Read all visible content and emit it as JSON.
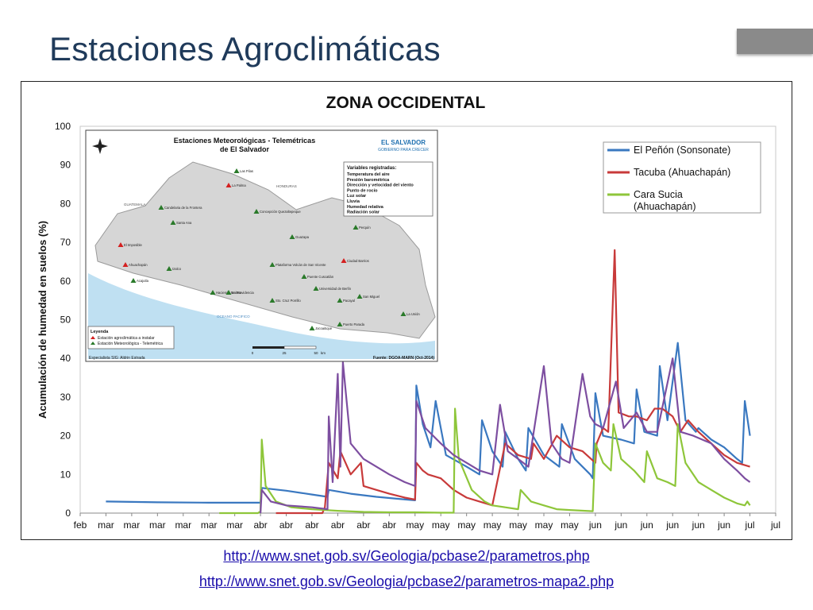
{
  "slide": {
    "title": "Estaciones Agroclimáticas",
    "links": [
      "http://www.snet.gob.sv/Geologia/pcbase2/parametros.php",
      "http://www.snet.gob.sv/Geologia/pcbase2/parametros-mapa2.php"
    ]
  },
  "chart_data": {
    "type": "line",
    "title": "ZONA OCCIDENTAL",
    "ylabel": "Acumulación  de humedad en suelos (%)",
    "xlabel": "",
    "ylim": [
      0,
      100
    ],
    "yticks": [
      0,
      10,
      20,
      30,
      40,
      50,
      60,
      70,
      80,
      90,
      100
    ],
    "grid": false,
    "legend_position": "top-right",
    "categories": [
      "feb",
      "mar",
      "mar",
      "mar",
      "mar",
      "mar",
      "mar",
      "abr",
      "abr",
      "abr",
      "abr",
      "abr",
      "abr",
      "may",
      "may",
      "may",
      "may",
      "may",
      "may",
      "may",
      "jun",
      "jun",
      "jun",
      "jun",
      "jun",
      "jun",
      "jul",
      "jul"
    ],
    "series": [
      {
        "name": "El Peñón (Sonsonate)",
        "color": "#3a78c0",
        "points": [
          [
            1,
            3
          ],
          [
            3,
            2.8
          ],
          [
            5,
            2.7
          ],
          [
            7,
            2.7
          ],
          [
            7.05,
            6.5
          ],
          [
            8,
            5.8
          ],
          [
            9,
            4.8
          ],
          [
            9.6,
            4.2
          ],
          [
            9.65,
            6
          ],
          [
            10.5,
            5
          ],
          [
            11.5,
            4.2
          ],
          [
            12.5,
            3.6
          ],
          [
            13,
            3.3
          ],
          [
            13.05,
            33
          ],
          [
            13.3,
            23
          ],
          [
            13.6,
            17
          ],
          [
            13.8,
            29
          ],
          [
            14.2,
            15
          ],
          [
            15,
            12
          ],
          [
            15.5,
            10
          ],
          [
            15.6,
            24
          ],
          [
            16,
            16
          ],
          [
            16.4,
            12
          ],
          [
            16.5,
            21
          ],
          [
            17,
            14
          ],
          [
            17.3,
            11
          ],
          [
            17.4,
            22
          ],
          [
            18,
            15
          ],
          [
            18.6,
            12
          ],
          [
            18.7,
            23
          ],
          [
            19.2,
            14
          ],
          [
            19.8,
            10
          ],
          [
            19.9,
            9
          ],
          [
            20,
            31
          ],
          [
            20.3,
            20
          ],
          [
            21,
            19
          ],
          [
            21.5,
            18
          ],
          [
            21.6,
            32
          ],
          [
            21.9,
            21
          ],
          [
            22.4,
            20
          ],
          [
            22.5,
            38
          ],
          [
            22.8,
            24
          ],
          [
            23.2,
            44
          ],
          [
            23.5,
            24
          ],
          [
            23.9,
            21
          ],
          [
            24,
            22
          ],
          [
            24.5,
            19
          ],
          [
            25,
            17
          ],
          [
            25.5,
            14
          ],
          [
            25.7,
            13
          ],
          [
            25.8,
            29
          ],
          [
            26,
            20
          ]
        ]
      },
      {
        "name": "Tacuba (Ahuachapán)",
        "color": "#c83a3a",
        "points": [
          [
            7.6,
            0
          ],
          [
            9.4,
            0
          ],
          [
            9.5,
            1.5
          ],
          [
            9.65,
            13
          ],
          [
            10,
            9
          ],
          [
            10.1,
            16
          ],
          [
            10.5,
            10
          ],
          [
            10.9,
            13
          ],
          [
            11,
            7
          ],
          [
            11.5,
            6
          ],
          [
            12,
            5
          ],
          [
            12.6,
            4
          ],
          [
            13,
            3.5
          ],
          [
            13.05,
            13
          ],
          [
            13.3,
            11
          ],
          [
            13.5,
            10
          ],
          [
            14,
            9
          ],
          [
            14.5,
            6
          ],
          [
            15,
            4
          ],
          [
            15.5,
            3
          ],
          [
            16,
            2
          ],
          [
            16.5,
            18
          ],
          [
            17,
            15
          ],
          [
            17.5,
            14
          ],
          [
            17.6,
            18
          ],
          [
            18,
            14
          ],
          [
            18.5,
            20
          ],
          [
            19,
            17
          ],
          [
            19.5,
            16
          ],
          [
            20,
            13
          ],
          [
            20.05,
            18
          ],
          [
            20.3,
            22
          ],
          [
            20.5,
            21
          ],
          [
            20.75,
            68
          ],
          [
            20.9,
            26
          ],
          [
            21.3,
            25
          ],
          [
            21.6,
            25
          ],
          [
            22,
            24
          ],
          [
            22.3,
            27
          ],
          [
            22.6,
            27
          ],
          [
            23,
            25
          ],
          [
            23.3,
            21
          ],
          [
            23.6,
            24
          ],
          [
            24,
            21
          ],
          [
            24.5,
            18
          ],
          [
            25,
            15
          ],
          [
            25.5,
            13
          ],
          [
            26,
            12
          ]
        ]
      },
      {
        "name": "Cara Sucia (Ahuachapán)",
        "color": "#8ec63a",
        "points": [
          [
            5.4,
            0
          ],
          [
            6.9,
            0
          ],
          [
            7,
            0.5
          ],
          [
            7.05,
            19
          ],
          [
            7.2,
            7
          ],
          [
            7.6,
            3
          ],
          [
            8.2,
            1.5
          ],
          [
            9,
            1
          ],
          [
            10,
            0.6
          ],
          [
            11,
            0.3
          ],
          [
            12,
            0.2
          ],
          [
            13,
            0.2
          ],
          [
            14,
            0.1
          ],
          [
            14.5,
            0.1
          ],
          [
            14.55,
            27
          ],
          [
            14.7,
            14
          ],
          [
            15.2,
            6
          ],
          [
            15.7,
            3
          ],
          [
            16,
            2
          ],
          [
            16.5,
            1.5
          ],
          [
            17,
            1
          ],
          [
            17.1,
            6
          ],
          [
            17.5,
            3
          ],
          [
            18,
            2
          ],
          [
            18.5,
            1
          ],
          [
            19,
            0.8
          ],
          [
            19.9,
            0.5
          ],
          [
            20,
            18
          ],
          [
            20.3,
            13
          ],
          [
            20.6,
            11
          ],
          [
            20.7,
            23
          ],
          [
            21,
            14
          ],
          [
            21.5,
            11
          ],
          [
            21.9,
            8
          ],
          [
            22,
            16
          ],
          [
            22.4,
            9
          ],
          [
            22.8,
            8
          ],
          [
            23.1,
            7
          ],
          [
            23.2,
            23
          ],
          [
            23.5,
            13
          ],
          [
            24,
            8
          ],
          [
            24.5,
            6
          ],
          [
            25,
            4
          ],
          [
            25.5,
            2.5
          ],
          [
            25.8,
            2
          ],
          [
            25.9,
            3
          ],
          [
            26,
            2
          ]
        ]
      },
      {
        "name": "",
        "color": "#7d4ea0",
        "points": [
          [
            7,
            0
          ],
          [
            7.05,
            6
          ],
          [
            7.4,
            3
          ],
          [
            8,
            2
          ],
          [
            9,
            1.5
          ],
          [
            9.6,
            1
          ],
          [
            9.65,
            25
          ],
          [
            9.8,
            8
          ],
          [
            10,
            36
          ],
          [
            10.1,
            12
          ],
          [
            10.2,
            39
          ],
          [
            10.5,
            18
          ],
          [
            11,
            14
          ],
          [
            11.5,
            12
          ],
          [
            12,
            10
          ],
          [
            12.6,
            8
          ],
          [
            13,
            7
          ],
          [
            13.05,
            29
          ],
          [
            13.4,
            22
          ],
          [
            14,
            18
          ],
          [
            14.5,
            15
          ],
          [
            15,
            13
          ],
          [
            15.5,
            11
          ],
          [
            16,
            10
          ],
          [
            16.3,
            28
          ],
          [
            16.6,
            16
          ],
          [
            17,
            14
          ],
          [
            17.4,
            12
          ],
          [
            18,
            38
          ],
          [
            18.3,
            18
          ],
          [
            18.7,
            14
          ],
          [
            19,
            13
          ],
          [
            19.5,
            36
          ],
          [
            19.8,
            25
          ],
          [
            20,
            23
          ],
          [
            20.3,
            22
          ],
          [
            20.8,
            34
          ],
          [
            21.1,
            22
          ],
          [
            21.6,
            26
          ],
          [
            22,
            21
          ],
          [
            22.4,
            21
          ],
          [
            23,
            40
          ],
          [
            23.3,
            21
          ],
          [
            23.8,
            20
          ],
          [
            24.5,
            18
          ],
          [
            25,
            14
          ],
          [
            25.5,
            11
          ],
          [
            25.8,
            9
          ],
          [
            26,
            8
          ]
        ]
      }
    ],
    "inset_map": {
      "title": "Estaciones Meteorológicas - Telemétricas de El Salvador",
      "brand": "EL SALVADOR",
      "brand_sub": "GOBIERNO PARA CRECER",
      "variables_header": "Variables registradas:",
      "variables": [
        "Temperatura del aire",
        "Presión barométrica",
        "Dirección y velocidad del viento",
        "Punto de rocío",
        "Luz solar",
        "Lluvia",
        "Humedad relativa",
        "Radiación solar"
      ],
      "legend_header": "Leyenda",
      "legend_items": [
        "Estación agroclimática a instalar",
        "Estación Meteorológica - Telemétrica"
      ],
      "footer_left": "Especialista SIG: Aldrin Estrada",
      "footer_right": "Fuente: DGOA-MARN  (Oct-2014)",
      "scale_labels": [
        "0",
        "25",
        "50"
      ],
      "scale_unit": "km",
      "ocean_label": "OCEANO PACIFICO",
      "country_labels": [
        "GUATEMALA",
        "HONDURAS"
      ],
      "station_labels": [
        "Las Pilas",
        "La Palma",
        "Candelaria de la Frontera",
        "Santa Ana",
        "Concepción Quezaltepeque",
        "Perquín",
        "El Imposible",
        "Ahuachapán",
        "Guazapa",
        "Ciudad Barrios",
        "Acajutla",
        "Izalco",
        "Plataforma Volcán de San Vicente",
        "Puente Cuscatlán",
        "Hacienda Melara",
        "La Providencia",
        "Sto. Cruz Porrillo",
        "Universidad de Berlín",
        "Pacayal",
        "San Miguel",
        "La Unión",
        "Jocoaitique",
        "Puerto Parada"
      ],
      "marker_colors": {
        "install": "#d42020",
        "station": "#2a7a2a"
      }
    }
  }
}
